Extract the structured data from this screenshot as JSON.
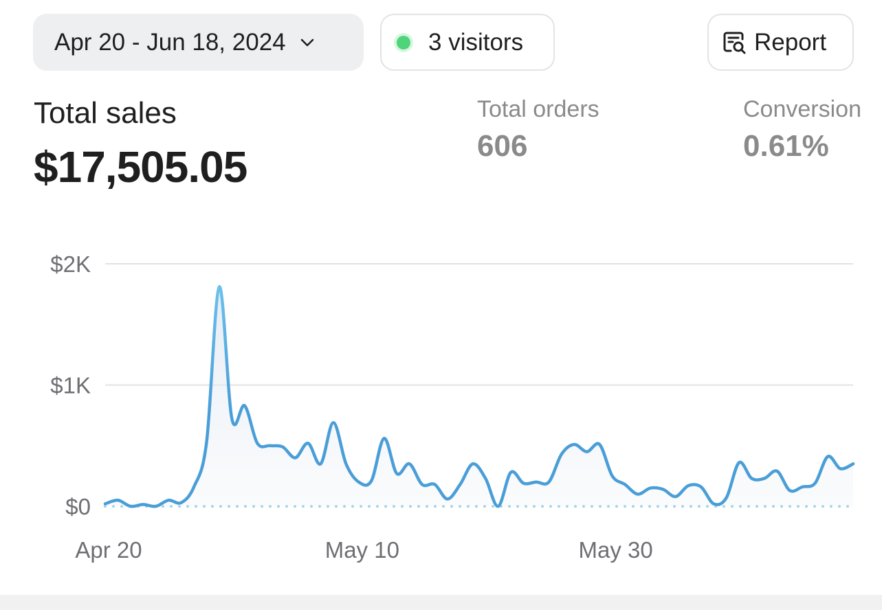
{
  "toolbar": {
    "date_range": "Apr 20 - Jun 18, 2024",
    "visitors": "3 visitors",
    "report": "Report"
  },
  "metrics": {
    "total_sales_label": "Total sales",
    "total_sales_value": "$17,505.05",
    "total_orders_label": "Total orders",
    "total_orders_value": "606",
    "conversion_label": "Conversion",
    "conversion_value": "0.61%"
  },
  "colors": {
    "line": "#4a9ed8",
    "line_peak": "#6cc0ec",
    "grid": "#e2e2e4",
    "baseline": "#9ccfe6",
    "visitor_dot": "#4fd47a"
  },
  "chart_data": {
    "type": "line",
    "xlabel": "",
    "ylabel": "",
    "ylim": [
      0,
      2000
    ],
    "y_ticks": [
      "$0",
      "$1K",
      "$2K"
    ],
    "x_tick_labels": [
      "Apr 20",
      "May 10",
      "May 30"
    ],
    "series": [
      {
        "values": [
          20,
          50,
          0,
          15,
          0,
          50,
          30,
          160,
          530,
          1810,
          720,
          830,
          520,
          500,
          490,
          400,
          520,
          350,
          690,
          350,
          200,
          210,
          560,
          270,
          350,
          180,
          180,
          60,
          180,
          350,
          230,
          0,
          280,
          190,
          200,
          200,
          430,
          510,
          450,
          510,
          250,
          180,
          100,
          150,
          140,
          80,
          170,
          160,
          20,
          70,
          360,
          230,
          230,
          290,
          130,
          160,
          190,
          410,
          310,
          350
        ]
      }
    ]
  }
}
